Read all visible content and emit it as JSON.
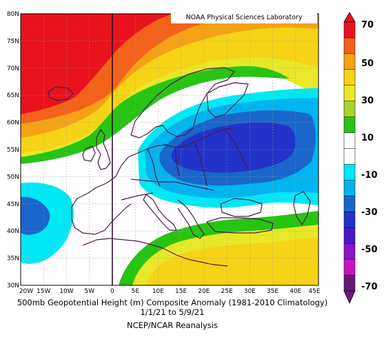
{
  "lab_credit": "NOAA Physical Sciences Laboratory",
  "caption": {
    "line1": "500mb Geopotential Height (m) Composite Anomaly (1981-2010 Climatology)",
    "line2": "1/1/21  to 5/9/21",
    "line3": "NCEP/NCAR Reanalysis"
  },
  "axes": {
    "lat_labels": [
      "80N",
      "75N",
      "70N",
      "65N",
      "60N",
      "55N",
      "50N",
      "45N",
      "40N",
      "35N",
      "30N"
    ],
    "lon_labels": [
      "20W",
      "15W",
      "10W",
      "5W",
      "0",
      "5E",
      "10E",
      "15E",
      "20E",
      "25E",
      "30E",
      "35E",
      "40E",
      "45E"
    ],
    "lat_range": [
      30,
      80
    ],
    "lon_range": [
      -20,
      45
    ]
  },
  "colorbar": {
    "labels": [
      "70",
      "50",
      "30",
      "10",
      "-10",
      "-30",
      "-50",
      "-70"
    ],
    "colors": [
      "#e8131d",
      "#f3621a",
      "#f5a216",
      "#f6d316",
      "#e8e829",
      "#a6d52b",
      "#27c414",
      "#ffffff",
      "#ffffff",
      "#00e8f4",
      "#00b4f0",
      "#1a66cc",
      "#2233c8",
      "#4a1ac8",
      "#8a16c8",
      "#c814c0",
      "#6a1878"
    ]
  },
  "map_colors": {
    "red": "#e8131d",
    "orange": "#f3621a",
    "light_orange": "#f5a216",
    "yellow": "#f6d316",
    "yellow_green": "#e8e829",
    "green": "#27c414",
    "white": "#ffffff",
    "cyan": "#00e8f4",
    "sky": "#00b4f0",
    "blue": "#1a66cc",
    "deep_blue": "#2233c8",
    "coast": "#4a1a4a"
  }
}
